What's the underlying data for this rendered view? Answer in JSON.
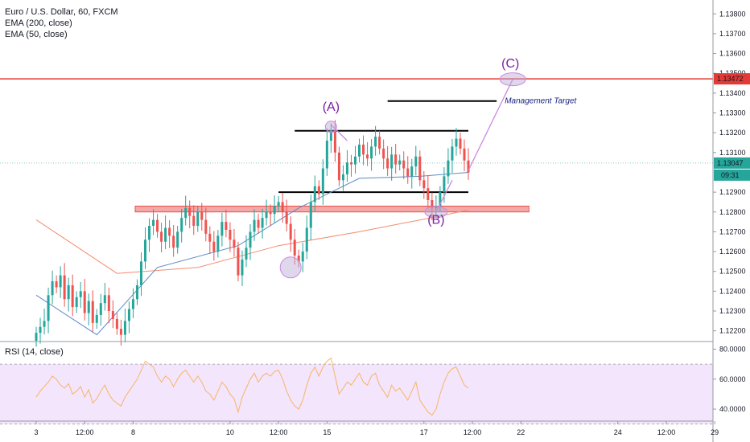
{
  "legend": {
    "symbol": "Euro / U.S. Dollar, 60, FXCM",
    "ema200": "EMA (200, close)",
    "ema50": "EMA (50, close)",
    "rsi": "RSI (14, close)"
  },
  "colors": {
    "bull": "#26a69a",
    "bear": "#ef5350",
    "ema200": "#f58b6e",
    "ema50": "#5b8bc7",
    "resistance": "#e53935",
    "current_price_line": "#80cbc4",
    "zone_fill": "#f28b8b",
    "wave": "#cc88dd",
    "wave_label": "#7b1fa2",
    "circle": "#b8a8d8",
    "management_text": "#1a237e",
    "rsi_band": "#f3e5fb",
    "rsi_line": "#f5b56b"
  },
  "chart_data": {
    "type": "candlestick",
    "symbol": "EURUSD",
    "timeframe": "60",
    "source": "FXCM",
    "y_ticks": [
      1.138,
      1.137,
      1.136,
      1.135,
      1.134,
      1.133,
      1.132,
      1.131,
      1.129,
      1.128,
      1.127,
      1.126,
      1.125,
      1.124,
      1.123,
      1.122
    ],
    "y_tick_labels": [
      "1.13800",
      "1.13700",
      "1.13600",
      "1.13500",
      "1.13400",
      "1.13300",
      "1.13200",
      "1.13100",
      "1.12900",
      "1.12800",
      "1.12700",
      "1.12600",
      "1.12500",
      "1.12400",
      "1.12300",
      "1.12200"
    ],
    "ylim": [
      1.1215,
      1.1387
    ],
    "x_ticks": [
      {
        "label": "3",
        "bar": 0
      },
      {
        "label": "12:00",
        "bar": 12
      },
      {
        "label": "8",
        "bar": 24
      },
      {
        "label": "10",
        "bar": 48
      },
      {
        "label": "12:00",
        "bar": 60
      },
      {
        "label": "15",
        "bar": 72
      },
      {
        "label": "17",
        "bar": 96
      },
      {
        "label": "12:00",
        "bar": 108
      },
      {
        "label": "22",
        "bar": 120
      },
      {
        "label": "24",
        "bar": 144
      },
      {
        "label": "12:00",
        "bar": 156
      },
      {
        "label": "29",
        "bar": 168
      }
    ],
    "x_range_bars": [
      -1,
      172
    ],
    "candles_close": [
      1.1219,
      1.1222,
      1.1225,
      1.1238,
      1.1245,
      1.1242,
      1.1248,
      1.1236,
      1.1243,
      1.1232,
      1.1237,
      1.124,
      1.1229,
      1.1235,
      1.1224,
      1.1228,
      1.1234,
      1.1238,
      1.123,
      1.1226,
      1.1221,
      1.1218,
      1.1225,
      1.1231,
      1.1236,
      1.1243,
      1.1255,
      1.1266,
      1.1273,
      1.1276,
      1.127,
      1.1265,
      1.1272,
      1.1268,
      1.1262,
      1.127,
      1.1277,
      1.1282,
      1.1278,
      1.1273,
      1.128,
      1.1276,
      1.1269,
      1.1265,
      1.126,
      1.1268,
      1.1275,
      1.1271,
      1.1266,
      1.1262,
      1.1248,
      1.1256,
      1.1262,
      1.127,
      1.1276,
      1.1272,
      1.1277,
      1.128,
      1.1279,
      1.1283,
      1.1285,
      1.128,
      1.1274,
      1.1266,
      1.1258,
      1.1255,
      1.126,
      1.1272,
      1.1285,
      1.1293,
      1.1289,
      1.1302,
      1.1316,
      1.1321,
      1.131,
      1.1296,
      1.1299,
      1.1305,
      1.1304,
      1.1308,
      1.1314,
      1.1309,
      1.1307,
      1.1313,
      1.1318,
      1.1312,
      1.1307,
      1.1302,
      1.1309,
      1.1304,
      1.1306,
      1.1302,
      1.1298,
      1.1303,
      1.1308,
      1.1296,
      1.1292,
      1.1286,
      1.1282,
      1.1283,
      1.129,
      1.1298,
      1.1306,
      1.1313,
      1.1317,
      1.1312,
      1.1306,
      1.13
    ],
    "current_price": "1.13047",
    "countdown": "09:31",
    "resistance_price": "1.13472",
    "ema200": [
      [
        0,
        1.1276
      ],
      [
        20,
        1.1249
      ],
      [
        40,
        1.1252
      ],
      [
        60,
        1.1263
      ],
      [
        80,
        1.127
      ],
      [
        100,
        1.1278
      ],
      [
        107,
        1.1281
      ]
    ],
    "ema50": [
      [
        0,
        1.1238
      ],
      [
        15,
        1.1218
      ],
      [
        30,
        1.1252
      ],
      [
        50,
        1.1263
      ],
      [
        65,
        1.1282
      ],
      [
        80,
        1.1297
      ],
      [
        95,
        1.1298
      ],
      [
        107,
        1.13
      ]
    ],
    "annotations": {
      "wave_A_label": "(A)",
      "wave_B_label": "(B)",
      "wave_C_label": "(C)",
      "management_target_label": "Management Target"
    },
    "levels": {
      "resistance": 1.13472,
      "management_target": 1.1336,
      "range_top": 1.1321,
      "range_bottom": 1.129,
      "zone_top": 1.1283,
      "zone_bottom": 1.128
    },
    "wave_points": {
      "A": [
        73,
        1.1325
      ],
      "B": [
        99,
        1.128
      ],
      "C": [
        118,
        1.1347
      ]
    },
    "rsi": {
      "y_ticks": [
        80,
        60,
        40
      ],
      "y_tick_labels": [
        "80.0000",
        "60.0000",
        "40.0000"
      ],
      "ylim": [
        32,
        84
      ],
      "band": [
        30,
        70
      ],
      "values": [
        48,
        52,
        55,
        58,
        62,
        60,
        56,
        54,
        57,
        50,
        52,
        55,
        48,
        53,
        44,
        47,
        52,
        56,
        50,
        46,
        44,
        42,
        48,
        52,
        56,
        60,
        66,
        72,
        70,
        68,
        62,
        58,
        62,
        60,
        55,
        60,
        64,
        66,
        62,
        58,
        62,
        58,
        52,
        50,
        46,
        52,
        58,
        55,
        50,
        47,
        38,
        48,
        54,
        60,
        64,
        58,
        62,
        64,
        62,
        65,
        66,
        60,
        52,
        46,
        42,
        40,
        46,
        56,
        64,
        68,
        62,
        68,
        72,
        74,
        62,
        50,
        54,
        58,
        56,
        60,
        64,
        58,
        56,
        62,
        64,
        56,
        52,
        48,
        56,
        52,
        54,
        50,
        46,
        52,
        58,
        46,
        42,
        38,
        36,
        40,
        50,
        58,
        64,
        67,
        68,
        62,
        56,
        54
      ]
    }
  }
}
